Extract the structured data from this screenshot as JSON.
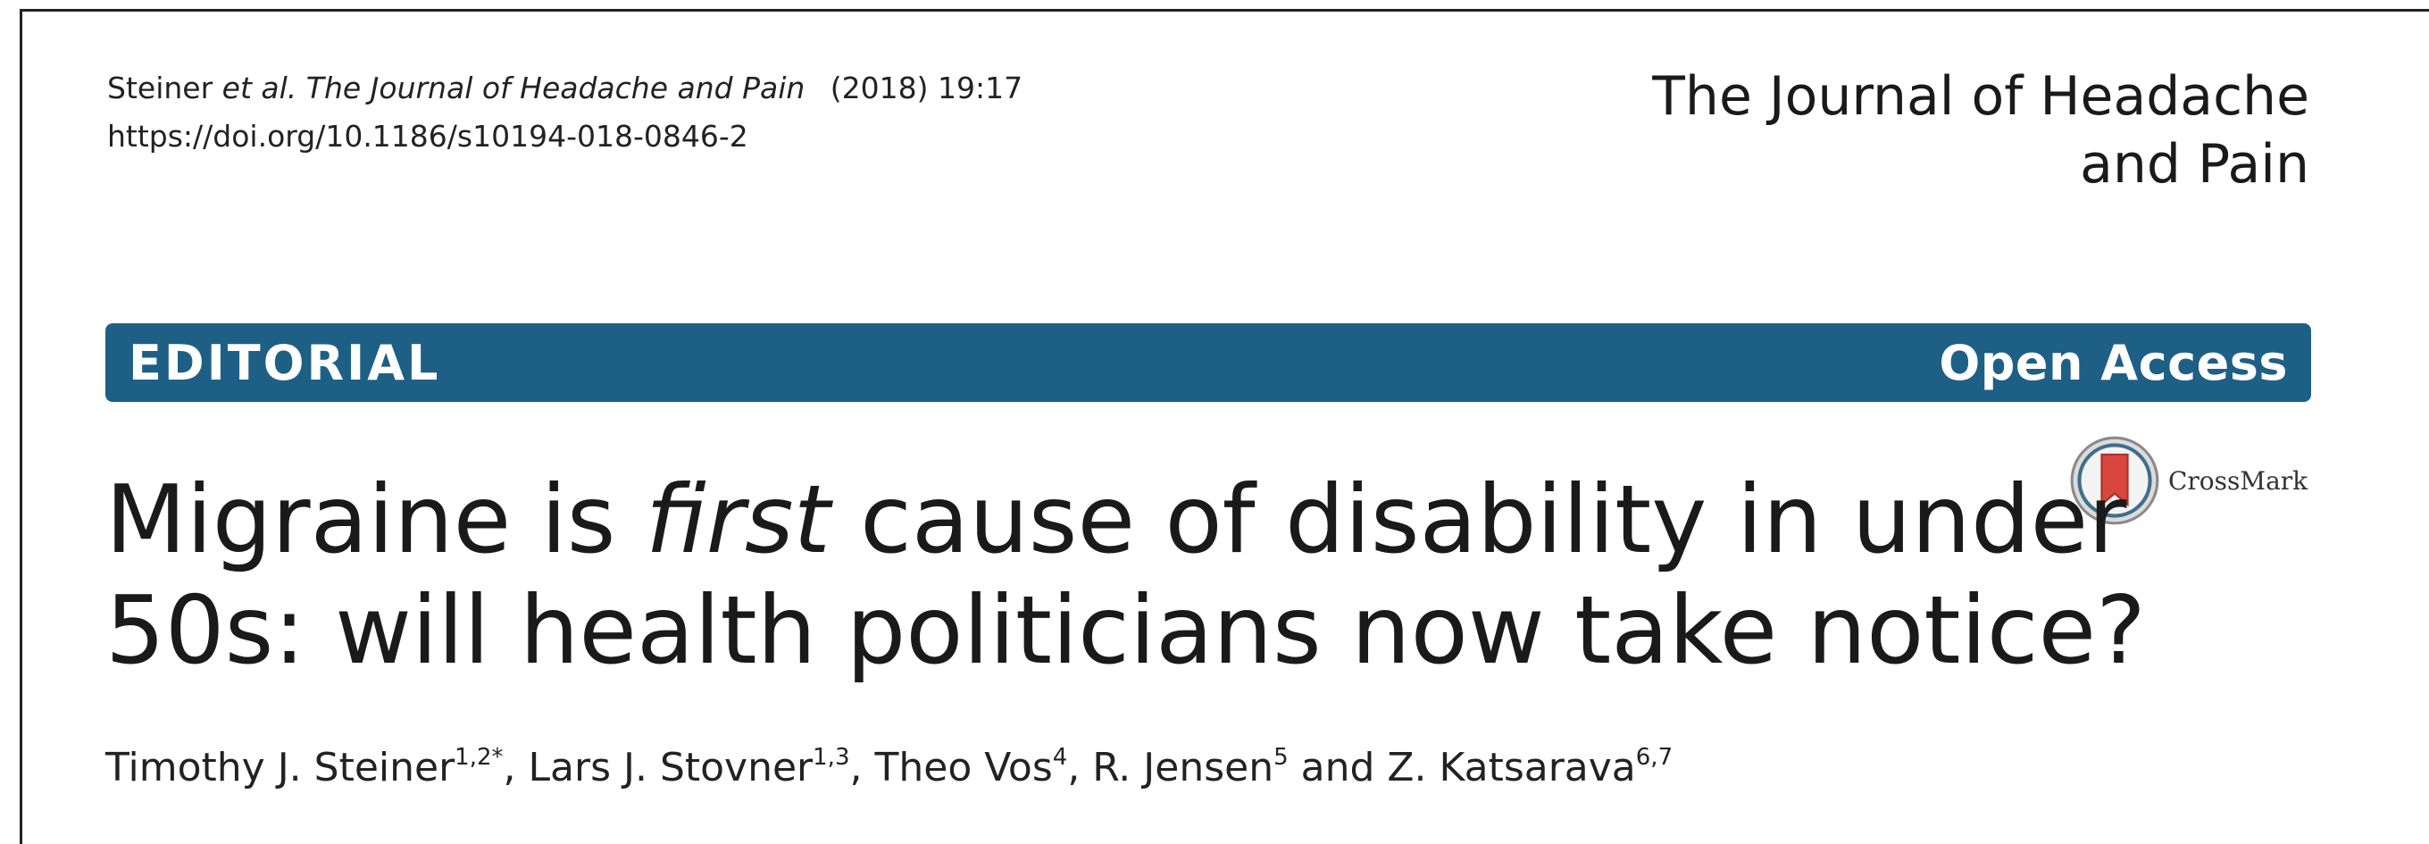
{
  "citation": {
    "author_lead": "Steiner",
    "et_al": "et al.",
    "journal_italic": "The Journal of Headache and Pain",
    "year_vol": "(2018) 19:17",
    "doi": "https://doi.org/10.1186/s10194-018-0846-2"
  },
  "journal_logo": {
    "line1": "The Journal of Headache",
    "line2": "and Pain"
  },
  "banner": {
    "type_label": "EDITORIAL",
    "access_label": "Open Access",
    "color": "#1e5f86"
  },
  "crossmark": {
    "label": "CrossMark",
    "icon": "crossmark-icon"
  },
  "title": {
    "part1": "Migraine is ",
    "emphasis": "first",
    "part2": " cause of disability in under",
    "line2": "50s: will health politicians now take notice?"
  },
  "authors": [
    {
      "name": "Timothy J. Steiner",
      "sup": "1,2*",
      "sep": ", "
    },
    {
      "name": "Lars J. Stovner",
      "sup": "1,3",
      "sep": ", "
    },
    {
      "name": "Theo Vos",
      "sup": "4",
      "sep": ", "
    },
    {
      "name": "R. Jensen",
      "sup": "5",
      "sep": " and "
    },
    {
      "name": "Z. Katsarava",
      "sup": "6,7",
      "sep": ""
    }
  ]
}
